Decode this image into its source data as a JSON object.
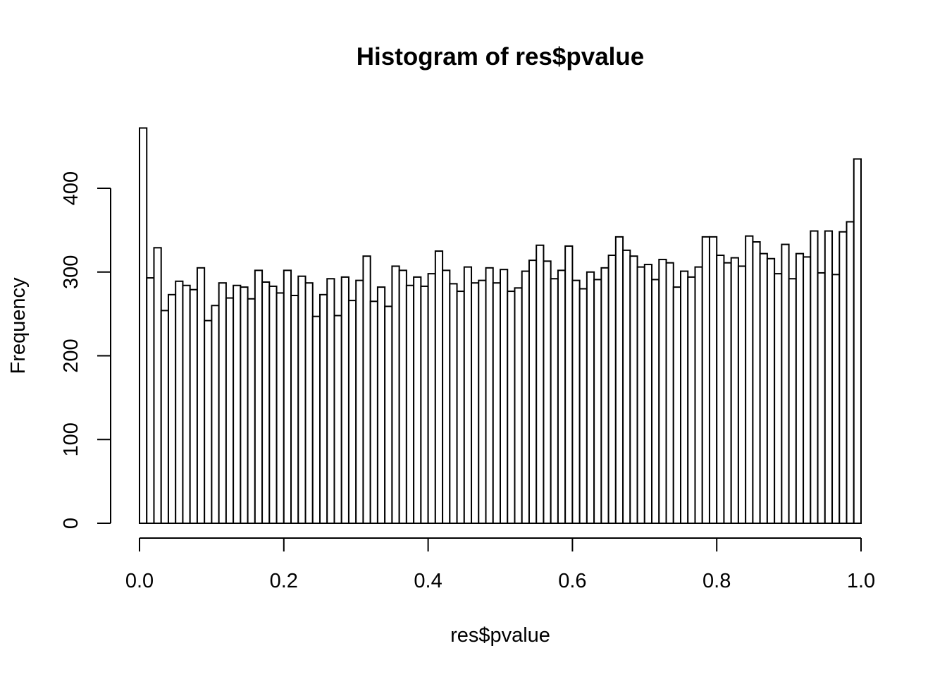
{
  "chart_data": {
    "type": "bar",
    "title": "Histogram of res$pvalue",
    "xlabel": "res$pvalue",
    "ylabel": "Frequency",
    "xlim": [
      0,
      1
    ],
    "ylim": [
      0,
      475
    ],
    "x_ticks": [
      "0.0",
      "0.2",
      "0.4",
      "0.6",
      "0.8",
      "1.0"
    ],
    "y_ticks": [
      "0",
      "100",
      "200",
      "300",
      "400"
    ],
    "bin_start": 0,
    "bin_width": 0.01,
    "grid": false,
    "legend": "none",
    "bar_fill": "#ffffff",
    "bar_stroke": "#000000",
    "values": [
      472,
      293,
      329,
      254,
      273,
      289,
      284,
      279,
      305,
      242,
      260,
      287,
      269,
      284,
      282,
      268,
      302,
      288,
      283,
      275,
      302,
      272,
      295,
      287,
      247,
      273,
      292,
      248,
      294,
      266,
      290,
      319,
      265,
      282,
      259,
      307,
      302,
      284,
      294,
      283,
      298,
      325,
      302,
      286,
      277,
      306,
      287,
      290,
      305,
      287,
      303,
      277,
      281,
      301,
      314,
      332,
      313,
      292,
      302,
      331,
      290,
      280,
      300,
      291,
      305,
      320,
      342,
      326,
      319,
      306,
      309,
      291,
      315,
      311,
      282,
      301,
      294,
      306,
      342,
      342,
      320,
      311,
      317,
      307,
      343,
      336,
      322,
      316,
      298,
      333,
      292,
      322,
      318,
      349,
      299,
      349,
      297,
      348,
      360,
      435
    ]
  }
}
